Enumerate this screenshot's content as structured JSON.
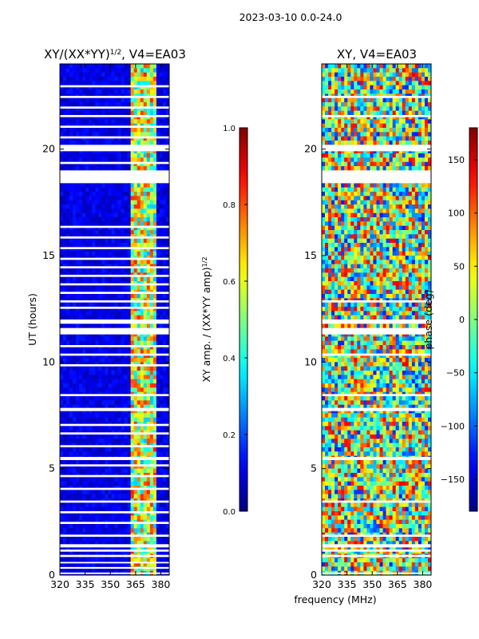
{
  "suptitle": "2023-03-10 0.0-24.0",
  "xlabel_shared": "frequency (MHz)",
  "chart_data": [
    {
      "type": "heatmap",
      "title_main": "XY/(XX*YY)",
      "title_sup": "1/2",
      "title_suffix": ", V4=EA03",
      "xlabel": "frequency (MHz)",
      "ylabel": "UT (hours)",
      "xlim": [
        320,
        385
      ],
      "ylim": [
        0,
        24
      ],
      "xticks": [
        "320",
        "335",
        "350",
        "365",
        "380"
      ],
      "xtick_values": [
        320,
        335,
        350,
        365,
        380
      ],
      "yticks": [
        "0",
        "5",
        "10",
        "15",
        "20"
      ],
      "ytick_values": [
        0,
        5,
        10,
        15,
        20
      ],
      "colorbar": {
        "label_main": "XY amp. / (XX*YY amp)",
        "label_sup": "1/2",
        "range": [
          0.0,
          1.0
        ],
        "ticks": [
          "0.0",
          "0.2",
          "0.4",
          "0.6",
          "0.8",
          "1.0"
        ],
        "tick_values": [
          0.0,
          0.2,
          0.4,
          0.6,
          0.8,
          1.0
        ]
      },
      "colormap": "jet",
      "bright_band_mhz": [
        362,
        378
      ],
      "flagged_bands_hours": [
        [
          0.05,
          0.12
        ],
        [
          0.3,
          0.38
        ],
        [
          0.55,
          0.62
        ],
        [
          0.85,
          0.95
        ],
        [
          1.1,
          1.2
        ],
        [
          1.3,
          1.45
        ],
        [
          1.8,
          1.9
        ],
        [
          2.4,
          2.5
        ],
        [
          2.9,
          3.0
        ],
        [
          3.4,
          3.5
        ],
        [
          4.0,
          4.1
        ],
        [
          4.6,
          4.7
        ],
        [
          5.1,
          5.2
        ],
        [
          5.4,
          5.55
        ],
        [
          6.0,
          6.1
        ],
        [
          6.6,
          6.7
        ],
        [
          7.0,
          7.1
        ],
        [
          7.7,
          7.85
        ],
        [
          8.4,
          8.5
        ],
        [
          9.8,
          9.9
        ],
        [
          10.3,
          10.4
        ],
        [
          10.7,
          10.8
        ],
        [
          11.3,
          11.6
        ],
        [
          11.8,
          12.0
        ],
        [
          12.5,
          12.6
        ],
        [
          12.8,
          12.9
        ],
        [
          13.2,
          13.3
        ],
        [
          13.6,
          13.7
        ],
        [
          14.0,
          14.1
        ],
        [
          14.4,
          14.5
        ],
        [
          14.8,
          14.9
        ],
        [
          15.3,
          15.4
        ],
        [
          15.8,
          15.9
        ],
        [
          16.3,
          16.4
        ],
        [
          18.4,
          19.0
        ],
        [
          19.3,
          19.4
        ],
        [
          19.9,
          20.2
        ],
        [
          20.5,
          20.6
        ],
        [
          21.0,
          21.1
        ],
        [
          21.5,
          21.6
        ],
        [
          21.9,
          22.0
        ],
        [
          22.4,
          22.5
        ],
        [
          22.9,
          23.0
        ]
      ]
    },
    {
      "type": "heatmap",
      "title_main": "XY, V4=EA03",
      "xlabel": "frequency (MHz)",
      "ylabel": "",
      "xlim": [
        320,
        385
      ],
      "ylim": [
        0,
        24
      ],
      "xticks": [
        "320",
        "335",
        "350",
        "365",
        "380"
      ],
      "xtick_values": [
        320,
        335,
        350,
        365,
        380
      ],
      "yticks": [
        "0",
        "5",
        "10",
        "15",
        "20"
      ],
      "ytick_values": [
        0,
        5,
        10,
        15,
        20
      ],
      "colorbar": {
        "label_main": "phase (deg)",
        "range": [
          -180,
          180
        ],
        "ticks": [
          "−150",
          "−100",
          "−50",
          "0",
          "50",
          "100",
          "150"
        ],
        "tick_values": [
          -150,
          -100,
          -50,
          0,
          50,
          100,
          150
        ]
      },
      "colormap": "jet",
      "flagged_bands_hours": [
        [
          0.05,
          0.12
        ],
        [
          0.85,
          0.95
        ],
        [
          1.1,
          1.2
        ],
        [
          1.3,
          1.45
        ],
        [
          1.8,
          1.9
        ],
        [
          3.4,
          3.5
        ],
        [
          5.4,
          5.55
        ],
        [
          7.7,
          7.85
        ],
        [
          8.4,
          8.5
        ],
        [
          10.3,
          10.4
        ],
        [
          11.3,
          11.6
        ],
        [
          11.8,
          12.0
        ],
        [
          12.8,
          12.9
        ],
        [
          18.4,
          19.0
        ],
        [
          19.9,
          20.2
        ],
        [
          21.5,
          21.6
        ],
        [
          22.4,
          22.5
        ]
      ]
    }
  ]
}
